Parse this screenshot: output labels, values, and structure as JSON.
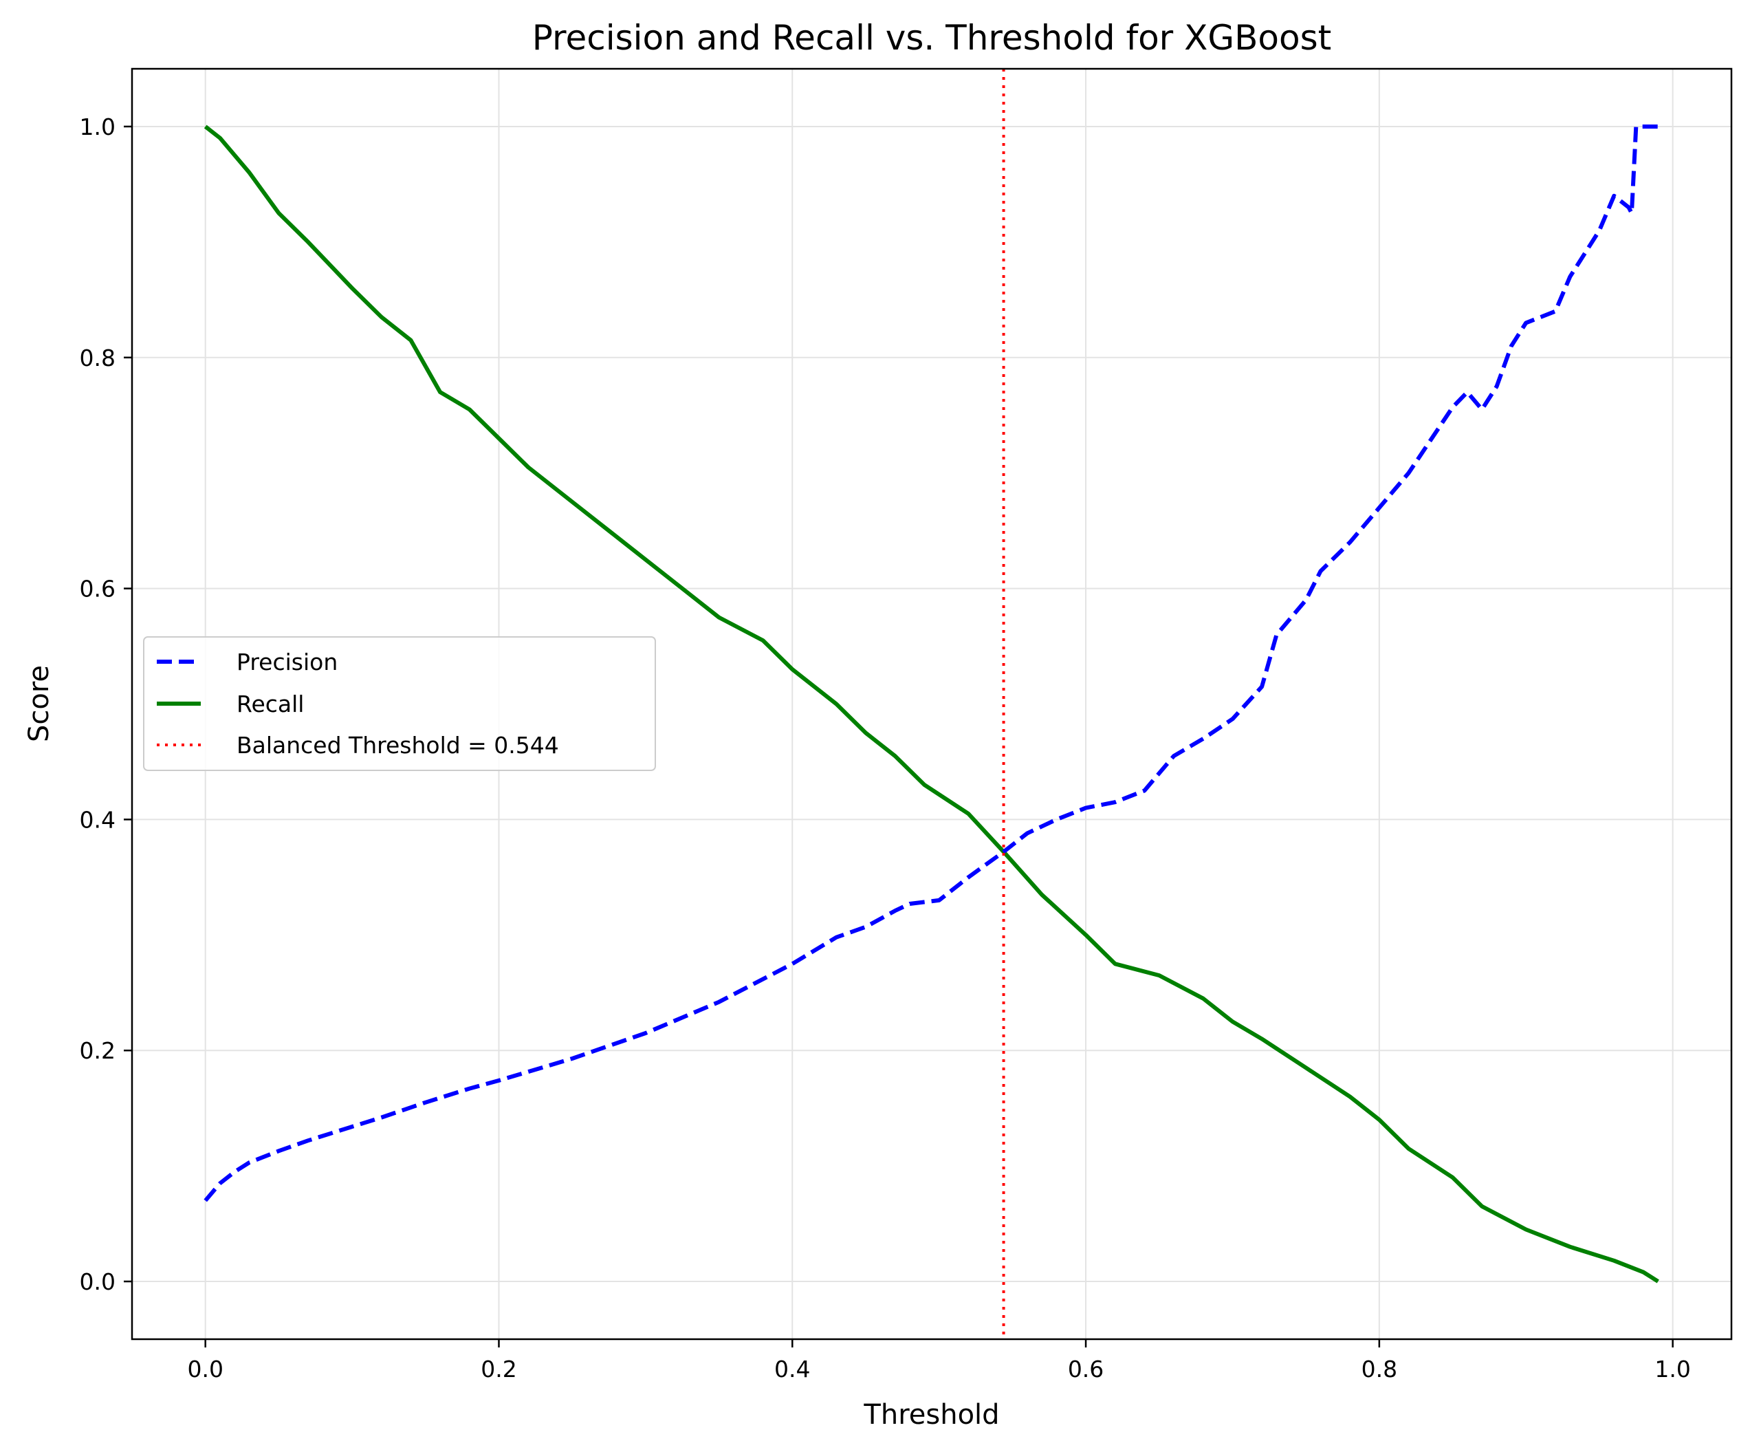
{
  "chart_data": {
    "type": "line",
    "title": "Precision and Recall vs. Threshold for XGBoost",
    "xlabel": "Threshold",
    "ylabel": "Score",
    "xlim": [
      -0.05,
      1.04
    ],
    "ylim": [
      -0.05,
      1.05
    ],
    "xticks": [
      "0.0",
      "0.2",
      "0.4",
      "0.6",
      "0.8",
      "1.0"
    ],
    "yticks": [
      "0.0",
      "0.2",
      "0.4",
      "0.6",
      "0.8",
      "1.0"
    ],
    "grid": true,
    "legend_position": "center-left",
    "series": [
      {
        "name": "Precision",
        "color": "#0000ff",
        "style": "dashed",
        "x": [
          0.0,
          0.01,
          0.02,
          0.03,
          0.05,
          0.07,
          0.1,
          0.12,
          0.15,
          0.18,
          0.2,
          0.25,
          0.3,
          0.35,
          0.4,
          0.43,
          0.45,
          0.47,
          0.48,
          0.5,
          0.52,
          0.544,
          0.56,
          0.58,
          0.6,
          0.62,
          0.64,
          0.66,
          0.68,
          0.7,
          0.72,
          0.73,
          0.75,
          0.76,
          0.78,
          0.8,
          0.82,
          0.84,
          0.85,
          0.86,
          0.87,
          0.88,
          0.89,
          0.9,
          0.91,
          0.92,
          0.93,
          0.94,
          0.95,
          0.96,
          0.97,
          0.972,
          0.975,
          0.99
        ],
        "values": [
          0.07,
          0.085,
          0.095,
          0.103,
          0.113,
          0.122,
          0.134,
          0.142,
          0.155,
          0.167,
          0.174,
          0.193,
          0.215,
          0.242,
          0.275,
          0.298,
          0.307,
          0.321,
          0.327,
          0.33,
          0.35,
          0.372,
          0.388,
          0.4,
          0.41,
          0.415,
          0.425,
          0.455,
          0.47,
          0.487,
          0.515,
          0.56,
          0.59,
          0.615,
          0.64,
          0.67,
          0.7,
          0.738,
          0.757,
          0.77,
          0.755,
          0.775,
          0.81,
          0.83,
          0.835,
          0.84,
          0.87,
          0.89,
          0.91,
          0.94,
          0.93,
          0.925,
          1.0,
          1.0
        ]
      },
      {
        "name": "Recall",
        "color": "#008000",
        "style": "solid",
        "x": [
          0.0,
          0.01,
          0.03,
          0.05,
          0.07,
          0.1,
          0.12,
          0.14,
          0.16,
          0.18,
          0.2,
          0.22,
          0.25,
          0.28,
          0.3,
          0.32,
          0.35,
          0.38,
          0.4,
          0.43,
          0.45,
          0.47,
          0.49,
          0.52,
          0.544,
          0.57,
          0.6,
          0.62,
          0.65,
          0.68,
          0.7,
          0.72,
          0.75,
          0.78,
          0.8,
          0.82,
          0.85,
          0.87,
          0.9,
          0.93,
          0.96,
          0.98,
          0.99
        ],
        "values": [
          1.0,
          0.99,
          0.96,
          0.925,
          0.9,
          0.86,
          0.835,
          0.815,
          0.77,
          0.755,
          0.73,
          0.705,
          0.675,
          0.645,
          0.625,
          0.605,
          0.575,
          0.555,
          0.53,
          0.5,
          0.475,
          0.455,
          0.43,
          0.405,
          0.372,
          0.335,
          0.3,
          0.275,
          0.265,
          0.245,
          0.225,
          0.21,
          0.185,
          0.16,
          0.14,
          0.115,
          0.09,
          0.065,
          0.045,
          0.03,
          0.018,
          0.008,
          0.0
        ]
      },
      {
        "name": "Balanced Threshold = 0.544",
        "color": "#ff0000",
        "style": "dotted",
        "x_vertical": 0.544
      }
    ]
  }
}
